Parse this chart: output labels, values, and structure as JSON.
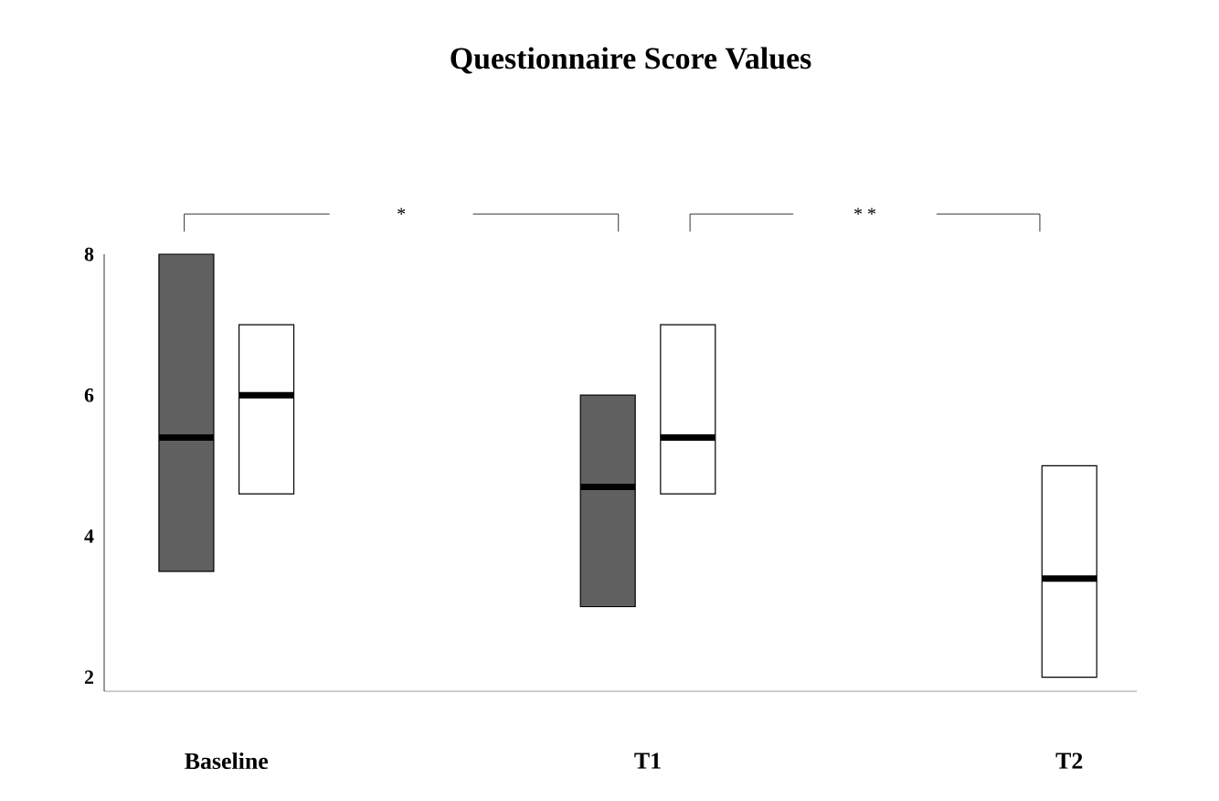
{
  "chart_data": {
    "type": "box",
    "title": "Questionnaire Score Values",
    "categories": [
      "Baseline",
      "T1",
      "T2"
    ],
    "ylim": [
      1.8,
      8
    ],
    "yticks": [
      2,
      4,
      6,
      8
    ],
    "series": [
      {
        "color": "#606060",
        "boxes": [
          {
            "low": 3.5,
            "q1": 3.5,
            "median": 5.4,
            "q3": 8,
            "high": 8
          },
          {
            "low": 3,
            "q1": 3,
            "median": 4.7,
            "q3": 6,
            "high": 6
          },
          null
        ]
      },
      {
        "color": "#ffffff",
        "boxes": [
          {
            "low": 4.6,
            "q1": 4.6,
            "median": 6,
            "q3": 7,
            "high": 7
          },
          {
            "low": 4.6,
            "q1": 4.6,
            "median": 5.4,
            "q3": 7,
            "high": 7
          },
          {
            "low": 2,
            "q1": 2,
            "median": 3.4,
            "q3": 5,
            "high": 5
          }
        ]
      }
    ],
    "annotations": [
      "*",
      "* *"
    ]
  }
}
